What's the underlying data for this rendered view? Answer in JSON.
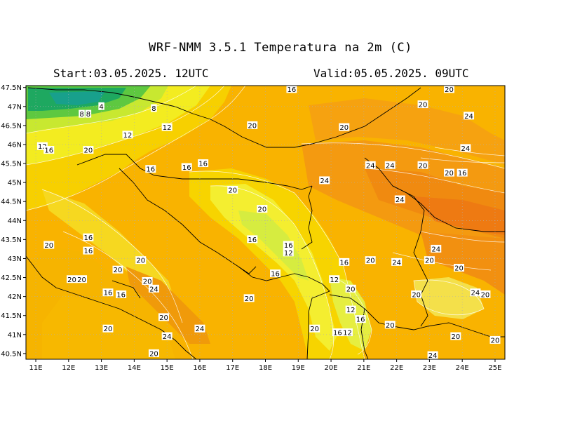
{
  "header": {
    "title": "WRF-NMM 3.5.1   Temperatura na 2m (C)",
    "start": "Start:03.05.2025.  12UTC",
    "valid": "Valid:05.05.2025.  09UTC"
  },
  "axes": {
    "lat_labels": [
      "47.5N",
      "47N",
      "46.5N",
      "46N",
      "45.5N",
      "45N",
      "44.5N",
      "44N",
      "43.5N",
      "43N",
      "42.5N",
      "42N",
      "41.5N",
      "41N",
      "40.5N"
    ],
    "lon_labels": [
      "11E",
      "12E",
      "13E",
      "14E",
      "15E",
      "16E",
      "17E",
      "18E",
      "19E",
      "20E",
      "21E",
      "22E",
      "23E",
      "24E",
      "25E"
    ]
  },
  "contour_labels": [
    {
      "t": "16",
      "lon": 18.8,
      "lat": 47.45
    },
    {
      "t": "20",
      "lon": 23.6,
      "lat": 47.45
    },
    {
      "t": "4",
      "lon": 13.0,
      "lat": 47.0
    },
    {
      "t": "8",
      "lon": 12.4,
      "lat": 46.8
    },
    {
      "t": "8",
      "lon": 12.6,
      "lat": 46.8
    },
    {
      "t": "8",
      "lon": 14.6,
      "lat": 46.95
    },
    {
      "t": "20",
      "lon": 22.8,
      "lat": 47.05
    },
    {
      "t": "24",
      "lon": 24.2,
      "lat": 46.75
    },
    {
      "t": "20",
      "lon": 17.6,
      "lat": 46.5
    },
    {
      "t": "20",
      "lon": 20.4,
      "lat": 46.45
    },
    {
      "t": "12",
      "lon": 15.0,
      "lat": 46.45
    },
    {
      "t": "12",
      "lon": 13.8,
      "lat": 46.25
    },
    {
      "t": "12",
      "lon": 11.2,
      "lat": 45.95
    },
    {
      "t": "16",
      "lon": 11.4,
      "lat": 45.85
    },
    {
      "t": "20",
      "lon": 12.6,
      "lat": 45.85
    },
    {
      "t": "24",
      "lon": 24.1,
      "lat": 45.9
    },
    {
      "t": "16",
      "lon": 16.1,
      "lat": 45.5
    },
    {
      "t": "16",
      "lon": 15.6,
      "lat": 45.4
    },
    {
      "t": "16",
      "lon": 14.5,
      "lat": 45.35
    },
    {
      "t": "24",
      "lon": 21.2,
      "lat": 45.45
    },
    {
      "t": "24",
      "lon": 21.8,
      "lat": 45.45
    },
    {
      "t": "20",
      "lon": 22.8,
      "lat": 45.45
    },
    {
      "t": "20",
      "lon": 23.6,
      "lat": 45.25
    },
    {
      "t": "16",
      "lon": 24.0,
      "lat": 45.25
    },
    {
      "t": "24",
      "lon": 19.8,
      "lat": 45.05
    },
    {
      "t": "20",
      "lon": 17.0,
      "lat": 44.8
    },
    {
      "t": "24",
      "lon": 22.1,
      "lat": 44.55
    },
    {
      "t": "20",
      "lon": 17.9,
      "lat": 44.3
    },
    {
      "t": "16",
      "lon": 12.6,
      "lat": 43.55
    },
    {
      "t": "20",
      "lon": 11.4,
      "lat": 43.35
    },
    {
      "t": "16",
      "lon": 12.6,
      "lat": 43.2
    },
    {
      "t": "16",
      "lon": 17.6,
      "lat": 43.5
    },
    {
      "t": "16",
      "lon": 18.7,
      "lat": 43.35
    },
    {
      "t": "12",
      "lon": 18.7,
      "lat": 43.15
    },
    {
      "t": "24",
      "lon": 23.2,
      "lat": 43.25
    },
    {
      "t": "20",
      "lon": 23.0,
      "lat": 42.95
    },
    {
      "t": "20",
      "lon": 23.9,
      "lat": 42.75
    },
    {
      "t": "20",
      "lon": 14.2,
      "lat": 42.95
    },
    {
      "t": "20",
      "lon": 13.5,
      "lat": 42.7
    },
    {
      "t": "16",
      "lon": 18.3,
      "lat": 42.6
    },
    {
      "t": "16",
      "lon": 20.4,
      "lat": 42.9
    },
    {
      "t": "20",
      "lon": 21.2,
      "lat": 42.95
    },
    {
      "t": "24",
      "lon": 22.0,
      "lat": 42.9
    },
    {
      "t": "20",
      "lon": 12.1,
      "lat": 42.45
    },
    {
      "t": "20",
      "lon": 12.4,
      "lat": 42.45
    },
    {
      "t": "20",
      "lon": 14.4,
      "lat": 42.4
    },
    {
      "t": "24",
      "lon": 14.6,
      "lat": 42.2
    },
    {
      "t": "12",
      "lon": 20.1,
      "lat": 42.45
    },
    {
      "t": "20",
      "lon": 20.6,
      "lat": 42.2
    },
    {
      "t": "16",
      "lon": 13.2,
      "lat": 42.1
    },
    {
      "t": "16",
      "lon": 13.6,
      "lat": 42.05
    },
    {
      "t": "20",
      "lon": 17.5,
      "lat": 41.95
    },
    {
      "t": "20",
      "lon": 22.6,
      "lat": 42.05
    },
    {
      "t": "24",
      "lon": 24.4,
      "lat": 42.1
    },
    {
      "t": "20",
      "lon": 24.7,
      "lat": 42.05
    },
    {
      "t": "12",
      "lon": 20.6,
      "lat": 41.65
    },
    {
      "t": "20",
      "lon": 14.9,
      "lat": 41.45
    },
    {
      "t": "16",
      "lon": 20.9,
      "lat": 41.4
    },
    {
      "t": "20",
      "lon": 21.8,
      "lat": 41.25
    },
    {
      "t": "20",
      "lon": 13.2,
      "lat": 41.15
    },
    {
      "t": "24",
      "lon": 16.0,
      "lat": 41.15
    },
    {
      "t": "20",
      "lon": 19.5,
      "lat": 41.15
    },
    {
      "t": "16",
      "lon": 20.2,
      "lat": 41.05
    },
    {
      "t": "12",
      "lon": 20.5,
      "lat": 41.05
    },
    {
      "t": "24",
      "lon": 15.0,
      "lat": 40.95
    },
    {
      "t": "20",
      "lon": 23.8,
      "lat": 40.95
    },
    {
      "t": "20",
      "lon": 25.0,
      "lat": 40.85
    },
    {
      "t": "20",
      "lon": 14.6,
      "lat": 40.5
    },
    {
      "t": "24",
      "lon": 23.1,
      "lat": 40.45
    }
  ]
}
